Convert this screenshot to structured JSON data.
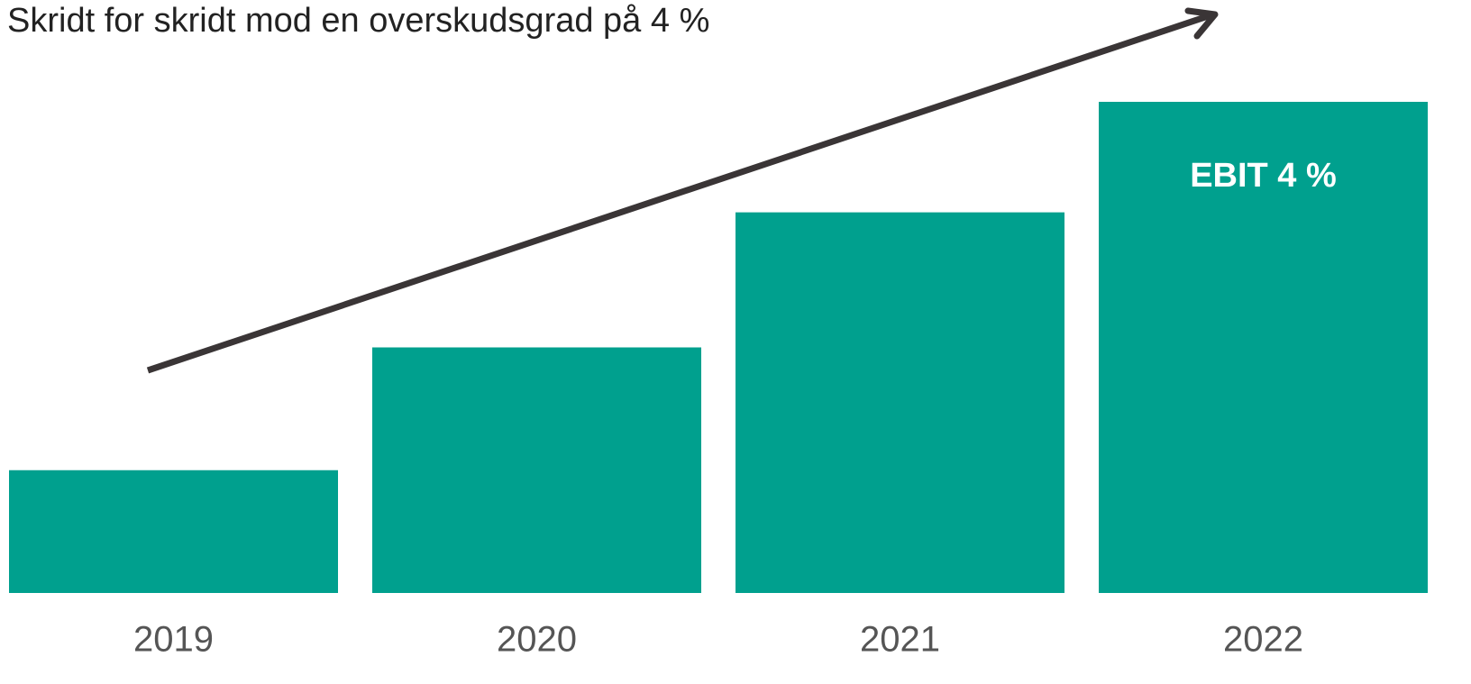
{
  "chart_data": {
    "type": "bar",
    "title": "Skridt for skridt mod en overskudsgrad på 4 %",
    "categories": [
      "2019",
      "2020",
      "2021",
      "2022"
    ],
    "values": [
      1.0,
      2.0,
      3.1,
      4
    ],
    "value_labels": [
      null,
      null,
      null,
      "EBIT 4 %"
    ],
    "color": "#00a08e",
    "ylim": [
      0,
      4
    ]
  }
}
